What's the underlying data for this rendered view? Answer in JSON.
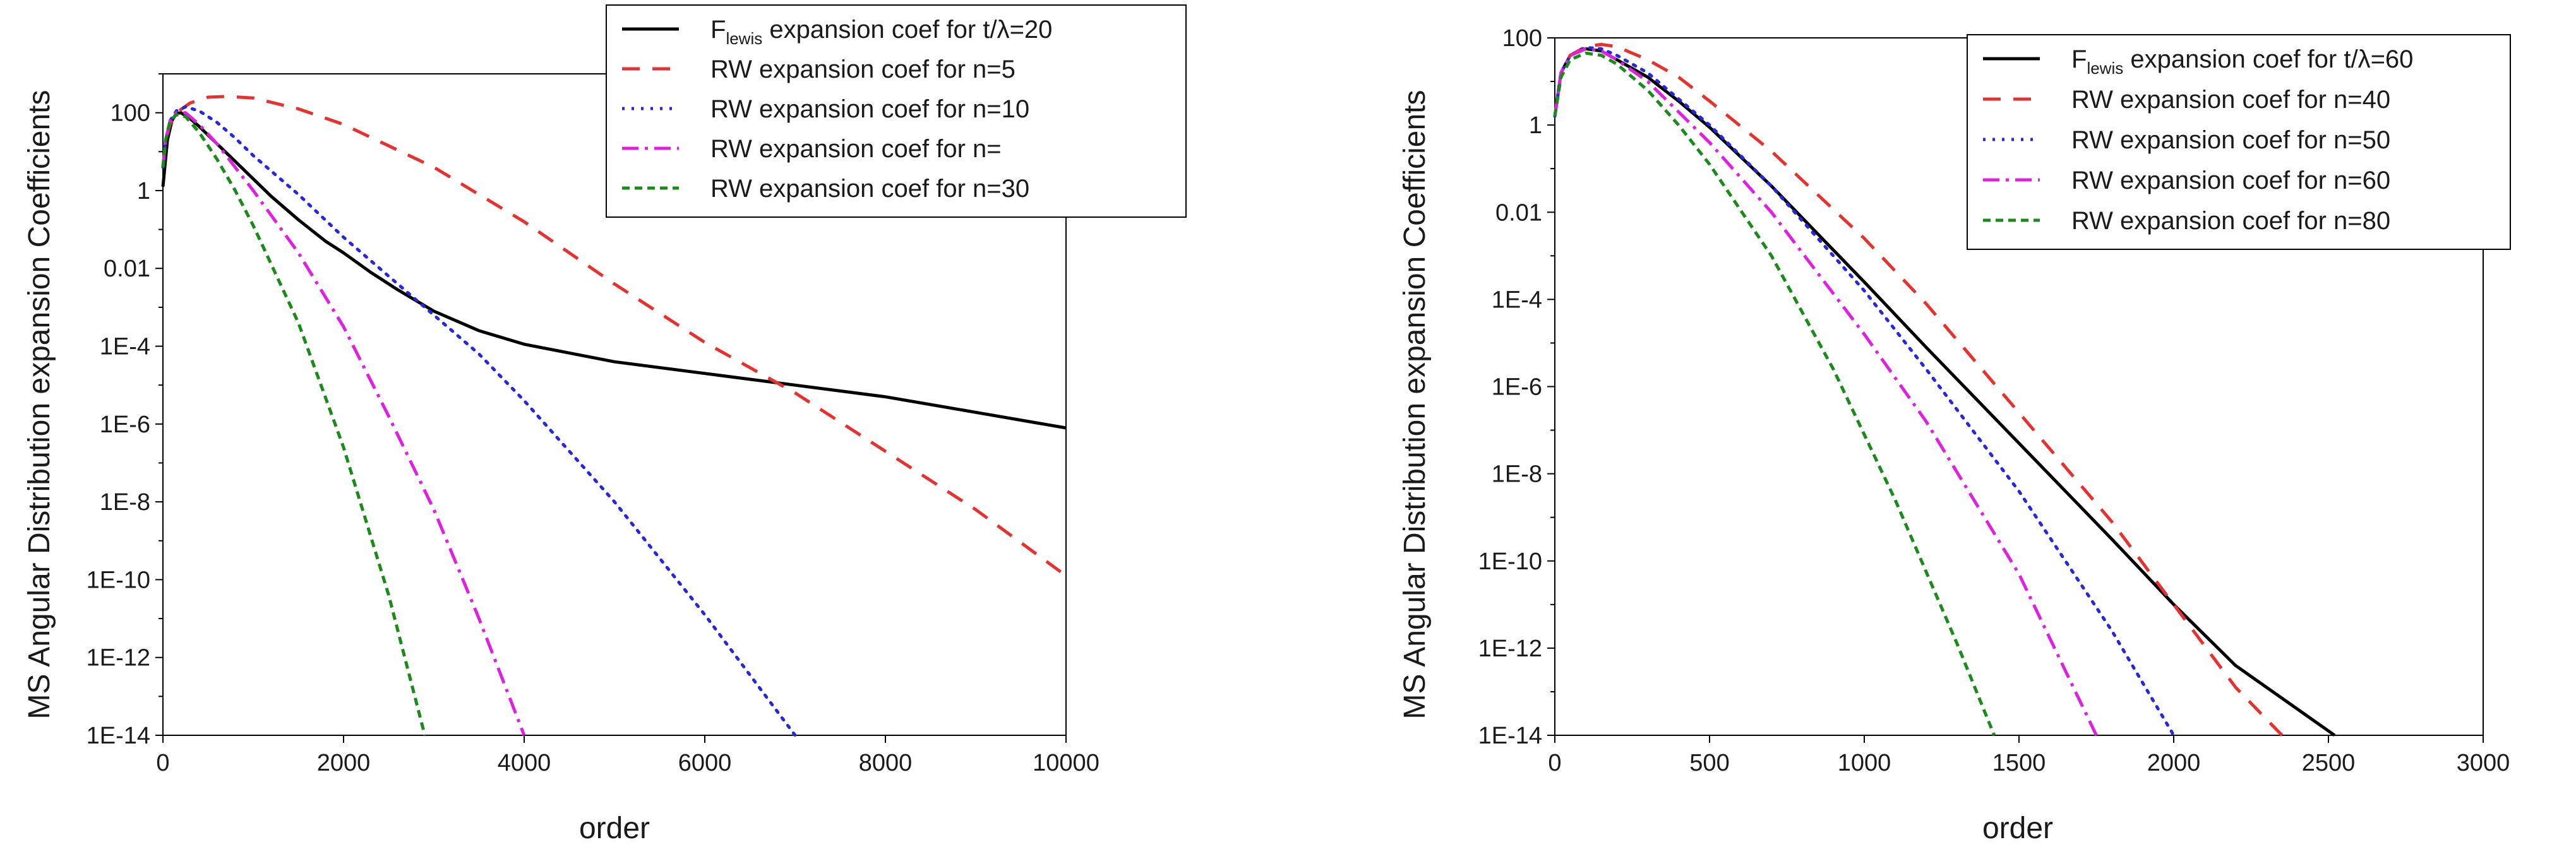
{
  "chart_data": [
    {
      "type": "line",
      "title": "",
      "xlabel": "order",
      "ylabel": "MS Angular Distribution expansion Coefficients",
      "xlim": [
        0,
        10000
      ],
      "ylim_log10": [
        -14,
        3
      ],
      "x_ticks": [
        "0",
        "2000",
        "4000",
        "6000",
        "8000",
        "10000"
      ],
      "y_ticks": [
        "100",
        "1",
        "0.01",
        "1E-4",
        "1E-6",
        "1E-8",
        "1E-10",
        "1E-12",
        "1E-14"
      ],
      "legend_position": "top-right",
      "series": [
        {
          "name": "Flewis expansion coef for t/λ=20",
          "label_main": "F",
          "label_sub": "lewis",
          "label_rest": " expansion coef for t/λ=20",
          "color": "#000000",
          "dash": "solid",
          "x": [
            0,
            50,
            100,
            150,
            200,
            300,
            400,
            600,
            800,
            1000,
            1200,
            1500,
            1800,
            2000,
            2300,
            2600,
            3000,
            3500,
            4000,
            5000,
            6000,
            7000,
            8000,
            9000,
            10000
          ],
          "log10y": [
            0.1,
            1.3,
            1.8,
            1.98,
            2.0,
            1.85,
            1.65,
            1.2,
            0.75,
            0.3,
            -0.15,
            -0.75,
            -1.3,
            -1.6,
            -2.1,
            -2.55,
            -3.1,
            -3.6,
            -3.95,
            -4.4,
            -4.7,
            -5.0,
            -5.3,
            -5.7,
            -6.1
          ]
        },
        {
          "name": "RW expansion coef for n=5",
          "label_main": "RW expansion coef for n=5",
          "color": "#e8312f",
          "dash": "long",
          "x": [
            0,
            30,
            80,
            150,
            300,
            500,
            700,
            1000,
            1500,
            2000,
            3000,
            4000,
            5000,
            6000,
            7000,
            8000,
            9000,
            10000
          ],
          "log10y": [
            0.6,
            1.3,
            1.7,
            2.0,
            2.25,
            2.4,
            2.42,
            2.38,
            2.1,
            1.7,
            0.6,
            -0.8,
            -2.4,
            -3.9,
            -5.2,
            -6.7,
            -8.2,
            -9.9
          ]
        },
        {
          "name": "RW expansion coef for n=10",
          "label_main": "RW expansion coef for n=10",
          "color": "#2626e0",
          "dash": "dot",
          "x": [
            0,
            30,
            80,
            150,
            250,
            400,
            600,
            800,
            1000,
            1500,
            2000,
            2500,
            3000,
            3500,
            4000,
            5000,
            6000,
            7000
          ],
          "log10y": [
            0.6,
            1.3,
            1.8,
            2.05,
            2.15,
            2.05,
            1.75,
            1.35,
            0.9,
            -0.1,
            -1.2,
            -2.2,
            -3.2,
            -4.2,
            -5.4,
            -8.0,
            -10.9,
            -14.0
          ]
        },
        {
          "name": "RW expansion coef for n=",
          "label_main": "RW expansion coef for n=",
          "color": "#e020e0",
          "dash": "dashdot",
          "x": [
            0,
            30,
            80,
            150,
            250,
            400,
            600,
            800,
            1000,
            1500,
            2000,
            2500,
            3000,
            3500,
            4000
          ],
          "log10y": [
            0.6,
            1.3,
            1.8,
            2.0,
            2.0,
            1.7,
            1.2,
            0.6,
            0.0,
            -1.6,
            -3.5,
            -5.8,
            -8.2,
            -11.0,
            -14.0
          ]
        },
        {
          "name": "RW expansion coef for n=30",
          "label_main": "RW expansion coef for n=30",
          "color": "#1a8a1a",
          "dash": "short",
          "x": [
            0,
            30,
            80,
            150,
            250,
            400,
            600,
            800,
            1000,
            1500,
            2000,
            2500,
            2900
          ],
          "log10y": [
            0.6,
            1.3,
            1.8,
            1.95,
            1.9,
            1.5,
            0.8,
            0.0,
            -0.9,
            -3.4,
            -6.6,
            -10.4,
            -14.0
          ]
        }
      ]
    },
    {
      "type": "line",
      "title": "",
      "xlabel": "order",
      "ylabel": "MS Angular Distribution expansion Coefficients",
      "xlim": [
        0,
        3000
      ],
      "ylim_log10": [
        -14,
        2
      ],
      "x_ticks": [
        "0",
        "500",
        "1000",
        "1500",
        "2000",
        "2500",
        "3000"
      ],
      "y_ticks": [
        "100",
        "1",
        "0.01",
        "1E-4",
        "1E-6",
        "1E-8",
        "1E-10",
        "1E-12",
        "1E-14"
      ],
      "legend_position": "top-right",
      "series": [
        {
          "name": "Flewis expansion coef for t/λ=60",
          "label_main": "F",
          "label_sub": "lewis",
          "label_rest": " expansion coef for t/λ=60",
          "color": "#000000",
          "dash": "solid",
          "x": [
            0,
            20,
            50,
            100,
            150,
            200,
            300,
            400,
            500,
            700,
            1000,
            1200,
            1500,
            1800,
            2000,
            2200,
            2400,
            2520
          ],
          "log10y": [
            0.2,
            1.2,
            1.6,
            1.75,
            1.7,
            1.5,
            1.1,
            0.55,
            -0.05,
            -1.4,
            -3.6,
            -5.1,
            -7.3,
            -9.5,
            -11.0,
            -12.4,
            -13.4,
            -14.0
          ]
        },
        {
          "name": "RW expansion coef for n=40",
          "label_main": "RW expansion coef for n=40",
          "color": "#e8312f",
          "dash": "long",
          "x": [
            0,
            20,
            50,
            100,
            150,
            200,
            300,
            400,
            500,
            700,
            1000,
            1200,
            1500,
            1800,
            2000,
            2200,
            2350
          ],
          "log10y": [
            0.2,
            1.2,
            1.6,
            1.8,
            1.85,
            1.8,
            1.5,
            1.1,
            0.55,
            -0.6,
            -2.6,
            -4.1,
            -6.6,
            -9.1,
            -11.0,
            -12.9,
            -14.0
          ]
        },
        {
          "name": "RW expansion coef for n=50",
          "label_main": "RW expansion coef for n=50",
          "color": "#2626e0",
          "dash": "dot",
          "x": [
            0,
            20,
            50,
            100,
            150,
            200,
            300,
            400,
            500,
            700,
            1000,
            1200,
            1500,
            1800,
            2000
          ],
          "log10y": [
            0.2,
            1.2,
            1.6,
            1.78,
            1.75,
            1.6,
            1.2,
            0.6,
            0.0,
            -1.4,
            -3.8,
            -5.6,
            -8.4,
            -11.6,
            -14.0
          ]
        },
        {
          "name": "RW expansion coef for n=60",
          "label_main": "RW expansion coef for n=60",
          "color": "#e020e0",
          "dash": "dashdot",
          "x": [
            0,
            20,
            50,
            100,
            150,
            200,
            300,
            400,
            500,
            700,
            1000,
            1200,
            1500,
            1750
          ],
          "log10y": [
            0.2,
            1.2,
            1.6,
            1.75,
            1.7,
            1.5,
            1.0,
            0.3,
            -0.4,
            -2.0,
            -4.8,
            -6.8,
            -10.3,
            -14.0
          ]
        },
        {
          "name": "RW expansion coef for n=80",
          "label_main": "RW expansion coef for n=80",
          "color": "#1a8a1a",
          "dash": "short",
          "x": [
            0,
            20,
            50,
            100,
            150,
            200,
            300,
            400,
            500,
            700,
            900,
            1100,
            1300,
            1420
          ],
          "log10y": [
            0.2,
            1.1,
            1.5,
            1.65,
            1.6,
            1.4,
            0.8,
            0.0,
            -0.9,
            -3.0,
            -5.6,
            -8.6,
            -11.9,
            -14.0
          ]
        }
      ]
    }
  ]
}
